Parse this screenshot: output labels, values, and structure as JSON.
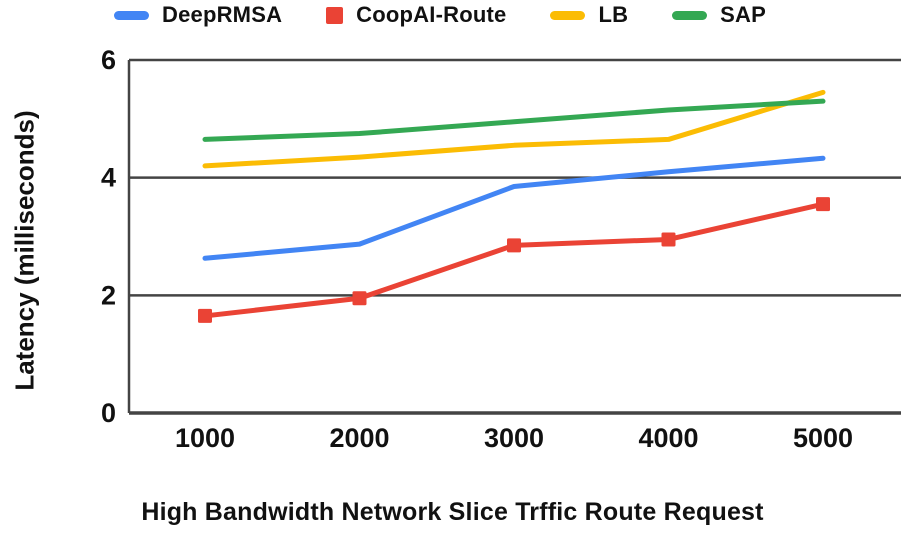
{
  "chart_data": {
    "type": "line",
    "xlabel": "High Bandwidth Network Slice Trffic Route Request",
    "ylabel": "Latency (milliseconds)",
    "categories": [
      "1000",
      "2000",
      "3000",
      "4000",
      "5000"
    ],
    "ylim": [
      0,
      6
    ],
    "yticks": [
      0,
      2,
      4,
      6
    ],
    "grid": true,
    "legend_position": "top",
    "axis_color": "#444444",
    "text_color": "#111111",
    "series": [
      {
        "name": "DeepRMSA",
        "color": "#4285F4",
        "marker": "none",
        "values": [
          2.63,
          2.87,
          3.85,
          4.1,
          4.33
        ]
      },
      {
        "name": "CoopAI-Route",
        "color": "#EA4335",
        "marker": "square",
        "values": [
          1.65,
          1.95,
          2.85,
          2.95,
          3.55
        ]
      },
      {
        "name": "LB",
        "color": "#FBBC04",
        "marker": "none",
        "values": [
          4.2,
          4.35,
          4.55,
          4.65,
          5.45
        ]
      },
      {
        "name": "SAP",
        "color": "#34A853",
        "marker": "none",
        "values": [
          4.65,
          4.75,
          4.95,
          5.15,
          5.3
        ]
      }
    ]
  }
}
